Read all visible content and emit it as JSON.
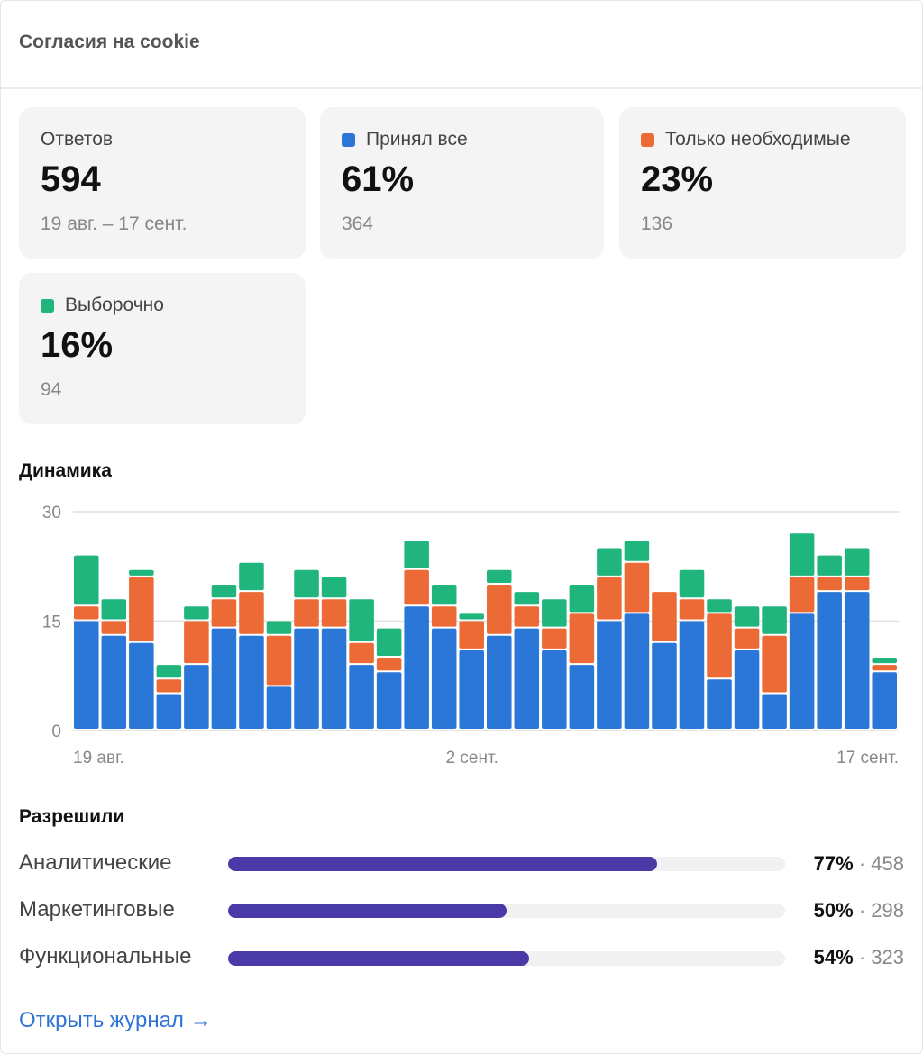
{
  "header": {
    "title": "Согласия на cookie"
  },
  "tiles": [
    {
      "label": "Ответов",
      "value": "594",
      "sub": "19 авг. – 17 сент."
    },
    {
      "label": "Принял все",
      "value": "61%",
      "sub": "364",
      "color": "#2b77d8"
    },
    {
      "label": "Только необходимые",
      "value": "23%",
      "sub": "136",
      "color": "#ec6a36"
    },
    {
      "label": "Выборочно",
      "value": "16%",
      "sub": "94",
      "color": "#1fb57c"
    }
  ],
  "dynamics": {
    "title": "Динамика"
  },
  "chart_data": {
    "type": "bar",
    "stacked": true,
    "ylim": [
      0,
      30
    ],
    "yticks": [
      "0",
      "15",
      "30"
    ],
    "xtick_labels": [
      {
        "index": 0,
        "label": "19 авг."
      },
      {
        "index": 14,
        "label": "2 сент."
      },
      {
        "index": 29,
        "label": "17 сент."
      }
    ],
    "grid": true,
    "series": [
      {
        "key": "all",
        "color": "#2b77d8",
        "values": [
          15,
          13,
          12,
          5,
          9,
          14,
          13,
          6,
          14,
          14,
          9,
          8,
          17,
          14,
          11,
          13,
          14,
          11,
          9,
          15,
          16,
          12,
          15,
          7,
          11,
          5,
          16,
          19,
          19,
          8
        ]
      },
      {
        "key": "necessary",
        "color": "#ec6a36",
        "values": [
          2,
          2,
          9,
          2,
          6,
          4,
          6,
          7,
          4,
          4,
          3,
          2,
          5,
          3,
          4,
          7,
          3,
          3,
          7,
          6,
          7,
          7,
          3,
          9,
          3,
          8,
          5,
          2,
          2,
          1
        ]
      },
      {
        "key": "custom",
        "color": "#1fb57c",
        "values": [
          7,
          3,
          1,
          2,
          2,
          2,
          4,
          2,
          4,
          3,
          6,
          4,
          4,
          3,
          1,
          2,
          2,
          4,
          4,
          4,
          3,
          0,
          4,
          2,
          3,
          4,
          6,
          3,
          4,
          1
        ]
      }
    ]
  },
  "permissions": {
    "title": "Разрешили",
    "items": [
      {
        "label": "Аналитические",
        "percent_text": "77%",
        "percent": 77,
        "count": "458"
      },
      {
        "label": "Маркетинговые",
        "percent_text": "50%",
        "percent": 50,
        "count": "298"
      },
      {
        "label": "Функциональные",
        "percent_text": "54%",
        "percent": 54,
        "count": "323"
      }
    ]
  },
  "link": {
    "label": "Открыть журнал →"
  }
}
